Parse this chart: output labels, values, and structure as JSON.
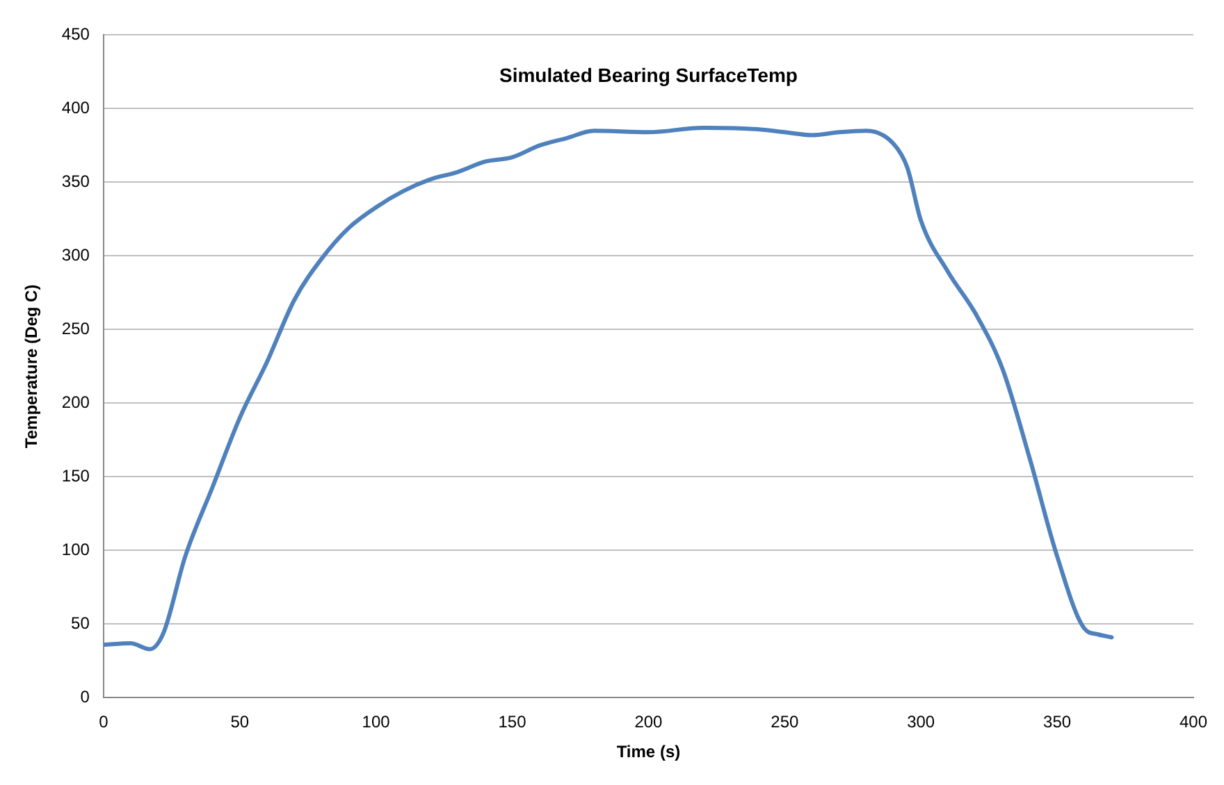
{
  "chart_data": {
    "type": "line",
    "title": "Simulated Bearing SurfaceTemp",
    "xlabel": "Time (s)",
    "ylabel": "Temperature (Deg C)",
    "x": [
      0,
      10,
      17,
      22,
      30,
      40,
      50,
      60,
      70,
      80,
      90,
      100,
      110,
      120,
      130,
      140,
      150,
      160,
      170,
      180,
      200,
      220,
      240,
      250,
      260,
      270,
      280,
      290,
      295,
      300,
      310,
      320,
      330,
      340,
      350,
      360,
      365,
      370
    ],
    "series": [
      {
        "color": "#4f81bd",
        "values": [
          36,
          37,
          33,
          44,
          96,
          143,
          190,
          228,
          270,
          298,
          319,
          333,
          344,
          352,
          357,
          364,
          367,
          375,
          380,
          385,
          384,
          387,
          386,
          384,
          382,
          384,
          385,
          376,
          360,
          324,
          289,
          261,
          223,
          162,
          96,
          47,
          43,
          41
        ]
      }
    ],
    "xlim": [
      0,
      400
    ],
    "xticks": [
      0,
      50,
      100,
      150,
      200,
      250,
      300,
      350,
      400
    ],
    "ylim": [
      0,
      450
    ],
    "yticks": [
      0,
      50,
      100,
      150,
      200,
      250,
      300,
      350,
      400,
      450
    ],
    "grid": "y",
    "legend": false,
    "marker": "none",
    "line_style": "solid"
  }
}
